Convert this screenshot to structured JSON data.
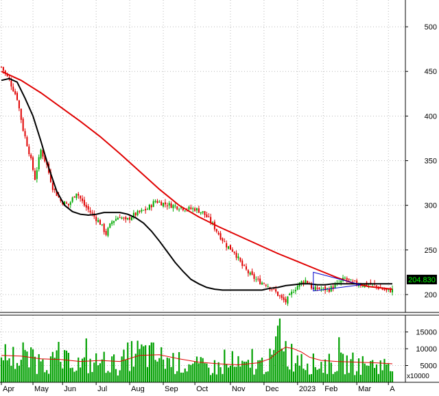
{
  "chart_data": [
    {
      "type": "candlestick",
      "panel": "price",
      "y_ticks": [
        200,
        250,
        300,
        350,
        400,
        450,
        500
      ],
      "ylim": [
        180,
        530
      ],
      "last_price_label": "204.830",
      "grid": true,
      "colors": {
        "up": "#00aa00",
        "down": "#e00000",
        "ma_long": "#e00000",
        "ma_short": "#000000",
        "pattern": "#0000cc",
        "price_label_bg": "#000000",
        "price_label_text": "#00ff00"
      },
      "price_path": [
        [
          0,
          455
        ],
        [
          4,
          440
        ],
        [
          8,
          420
        ],
        [
          11,
          385
        ],
        [
          14,
          360
        ],
        [
          17,
          330
        ],
        [
          20,
          362
        ],
        [
          23,
          345
        ],
        [
          26,
          320
        ],
        [
          30,
          305
        ],
        [
          34,
          300
        ],
        [
          38,
          315
        ],
        [
          42,
          300
        ],
        [
          46,
          290
        ],
        [
          50,
          280
        ],
        [
          53,
          268
        ],
        [
          56,
          282
        ],
        [
          60,
          288
        ],
        [
          63,
          282
        ],
        [
          66,
          288
        ],
        [
          70,
          292
        ],
        [
          74,
          296
        ],
        [
          78,
          305
        ],
        [
          82,
          302
        ],
        [
          86,
          300
        ],
        [
          90,
          298
        ],
        [
          94,
          296
        ],
        [
          98,
          296
        ],
        [
          102,
          292
        ],
        [
          106,
          282
        ],
        [
          110,
          268
        ],
        [
          114,
          255
        ],
        [
          118,
          248
        ],
        [
          122,
          232
        ],
        [
          126,
          222
        ],
        [
          130,
          215
        ],
        [
          134,
          212
        ],
        [
          138,
          205
        ],
        [
          142,
          195
        ],
        [
          144,
          192
        ],
        [
          146,
          198
        ],
        [
          148,
          205
        ],
        [
          150,
          210
        ],
        [
          152,
          214
        ],
        [
          154,
          216
        ],
        [
          156,
          212
        ],
        [
          158,
          205
        ],
        [
          160,
          207
        ],
        [
          163,
          206
        ],
        [
          166,
          206
        ],
        [
          170,
          211
        ],
        [
          174,
          218
        ],
        [
          177,
          214
        ],
        [
          180,
          212
        ],
        [
          183,
          211
        ],
        [
          186,
          212
        ],
        [
          189,
          210
        ],
        [
          192,
          207
        ],
        [
          195,
          204
        ],
        [
          198,
          205
        ]
      ],
      "ma_long": [
        [
          0,
          450
        ],
        [
          10,
          440
        ],
        [
          20,
          426
        ],
        [
          30,
          410
        ],
        [
          40,
          394
        ],
        [
          50,
          377
        ],
        [
          60,
          358
        ],
        [
          70,
          338
        ],
        [
          80,
          318
        ],
        [
          90,
          300
        ],
        [
          100,
          287
        ],
        [
          110,
          276
        ],
        [
          120,
          266
        ],
        [
          130,
          256
        ],
        [
          140,
          246
        ],
        [
          150,
          237
        ],
        [
          160,
          228
        ],
        [
          170,
          219
        ],
        [
          178,
          213
        ],
        [
          186,
          209
        ],
        [
          194,
          207
        ],
        [
          198,
          206
        ]
      ],
      "ma_short": [
        [
          0,
          440
        ],
        [
          4,
          442
        ],
        [
          8,
          438
        ],
        [
          12,
          420
        ],
        [
          16,
          400
        ],
        [
          20,
          372
        ],
        [
          24,
          342
        ],
        [
          28,
          316
        ],
        [
          32,
          300
        ],
        [
          36,
          293
        ],
        [
          40,
          290
        ],
        [
          44,
          289
        ],
        [
          48,
          290
        ],
        [
          52,
          292
        ],
        [
          56,
          292
        ],
        [
          60,
          292
        ],
        [
          64,
          290
        ],
        [
          68,
          286
        ],
        [
          72,
          280
        ],
        [
          76,
          271
        ],
        [
          80,
          260
        ],
        [
          84,
          248
        ],
        [
          88,
          236
        ],
        [
          92,
          226
        ],
        [
          96,
          217
        ],
        [
          100,
          212
        ],
        [
          104,
          208
        ],
        [
          108,
          206
        ],
        [
          112,
          205
        ],
        [
          116,
          205
        ],
        [
          120,
          205
        ],
        [
          124,
          205
        ],
        [
          128,
          205
        ],
        [
          132,
          205
        ],
        [
          136,
          207
        ],
        [
          140,
          208
        ],
        [
          144,
          210
        ],
        [
          148,
          211
        ],
        [
          152,
          212
        ],
        [
          156,
          212
        ],
        [
          160,
          211
        ],
        [
          164,
          211
        ],
        [
          168,
          212
        ],
        [
          172,
          212
        ],
        [
          176,
          212
        ],
        [
          180,
          212
        ],
        [
          184,
          212
        ],
        [
          188,
          212
        ],
        [
          192,
          212
        ],
        [
          196,
          212
        ],
        [
          198,
          212
        ]
      ],
      "triangle": [
        [
          158,
          225
        ],
        [
          182,
          211
        ],
        [
          158,
          204
        ]
      ]
    },
    {
      "type": "bar",
      "panel": "volume",
      "y_ticks": [
        5000,
        10000,
        15000
      ],
      "ylim": [
        0,
        20000
      ],
      "unit_label": "x10000",
      "colors": {
        "bars": "#00a000",
        "ma": "#e00000"
      },
      "volume_path": [
        [
          0,
          9000
        ],
        [
          6,
          8000
        ],
        [
          12,
          7500
        ],
        [
          18,
          7000
        ],
        [
          24,
          7000
        ],
        [
          30,
          6500
        ],
        [
          36,
          7000
        ],
        [
          40,
          6000
        ],
        [
          46,
          6000
        ],
        [
          50,
          7000
        ],
        [
          54,
          6500
        ],
        [
          60,
          5500
        ],
        [
          65,
          9000
        ],
        [
          70,
          9500
        ],
        [
          75,
          9000
        ],
        [
          80,
          8000
        ],
        [
          86,
          7000
        ],
        [
          92,
          6000
        ],
        [
          98,
          5500
        ],
        [
          104,
          5000
        ],
        [
          110,
          5000
        ],
        [
          116,
          5000
        ],
        [
          120,
          5500
        ],
        [
          124,
          5000
        ],
        [
          128,
          5200
        ],
        [
          132,
          6000
        ],
        [
          136,
          7000
        ],
        [
          138,
          9000
        ],
        [
          140,
          11000
        ],
        [
          142,
          18000
        ],
        [
          144,
          11000
        ],
        [
          146,
          9000
        ],
        [
          150,
          8000
        ],
        [
          154,
          7000
        ],
        [
          158,
          6000
        ],
        [
          164,
          6000
        ],
        [
          170,
          6000
        ],
        [
          176,
          6500
        ],
        [
          180,
          6000
        ],
        [
          186,
          5500
        ],
        [
          190,
          6000
        ],
        [
          194,
          5500
        ],
        [
          198,
          4000
        ]
      ],
      "volume_ma": [
        [
          0,
          8000
        ],
        [
          10,
          7800
        ],
        [
          20,
          7000
        ],
        [
          30,
          6800
        ],
        [
          40,
          6200
        ],
        [
          50,
          6500
        ],
        [
          60,
          6200
        ],
        [
          70,
          8000
        ],
        [
          80,
          8200
        ],
        [
          90,
          7000
        ],
        [
          100,
          6000
        ],
        [
          110,
          5500
        ],
        [
          120,
          5200
        ],
        [
          130,
          5800
        ],
        [
          136,
          7000
        ],
        [
          140,
          9000
        ],
        [
          144,
          10500
        ],
        [
          148,
          10000
        ],
        [
          152,
          9000
        ],
        [
          156,
          7500
        ],
        [
          162,
          6500
        ],
        [
          170,
          6200
        ],
        [
          180,
          6000
        ],
        [
          190,
          5800
        ],
        [
          198,
          5500
        ]
      ]
    }
  ],
  "x_axis": {
    "labels": [
      "Apr",
      "May",
      "Jun",
      "Jul",
      "Aug",
      "Sep",
      "Oct",
      "Nov",
      "Dec",
      "2023",
      "Feb",
      "Mar",
      "A"
    ],
    "label_index": [
      0,
      16,
      31,
      48,
      65,
      82,
      98,
      116,
      133,
      150,
      163,
      180,
      196
    ],
    "bar_count": 199
  }
}
